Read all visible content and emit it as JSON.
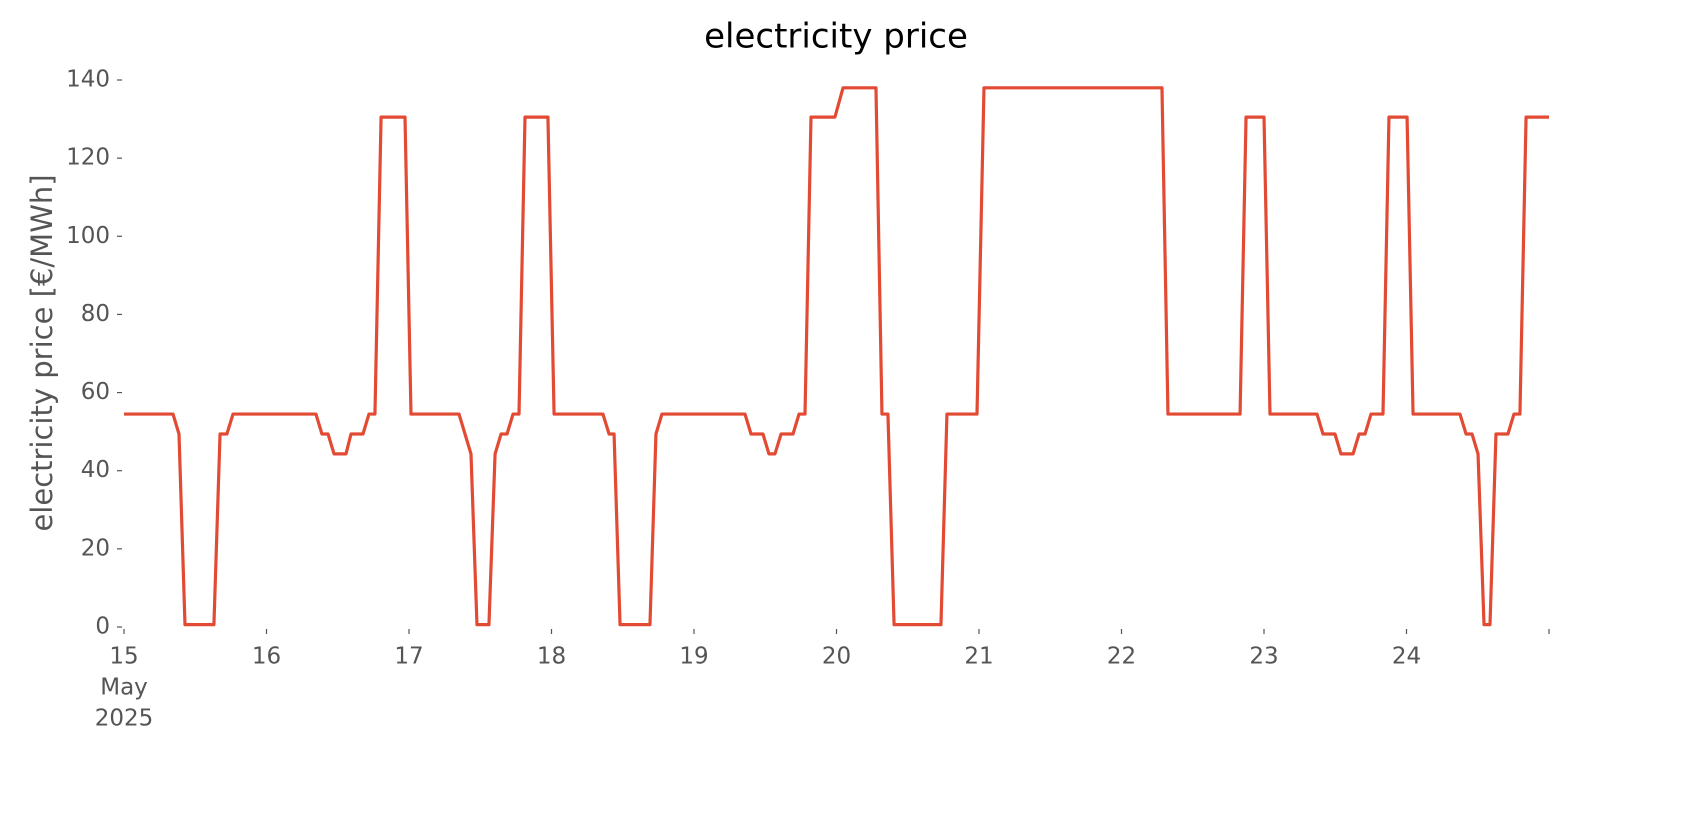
{
  "chart_data": {
    "type": "line",
    "title": "electricity price",
    "ylabel": "electricity price [€/MWh]",
    "x_offset_label": [
      "May",
      "2025"
    ],
    "xlim": [
      15,
      25
    ],
    "xticks": [
      15,
      16,
      17,
      18,
      19,
      20,
      21,
      22,
      23,
      24
    ],
    "ylim": [
      0,
      140
    ],
    "yticks": [
      0,
      20,
      40,
      60,
      80,
      100,
      120,
      140
    ],
    "grid": false,
    "series": [
      {
        "name": "electricity price",
        "color": "#e24a33",
        "x": [
          15,
          15.344,
          15.386,
          15.428,
          15.631,
          15.674,
          15.722,
          15.765,
          16.347,
          16.389,
          16.432,
          16.474,
          16.558,
          16.593,
          16.677,
          16.719,
          16.761,
          16.804,
          16.972,
          17.014,
          17.351,
          17.435,
          17.477,
          17.561,
          17.604,
          17.646,
          17.688,
          17.73,
          17.772,
          17.814,
          17.975,
          18.018,
          18.361,
          18.404,
          18.439,
          18.481,
          18.691,
          18.733,
          18.775,
          19.358,
          19.4,
          19.484,
          19.526,
          19.568,
          19.611,
          19.695,
          19.737,
          19.779,
          19.821,
          19.989,
          20.046,
          20.277,
          20.319,
          20.361,
          20.404,
          20.733,
          20.775,
          20.986,
          21.035,
          22.284,
          22.326,
          22.832,
          22.874,
          23.0,
          23.042,
          23.372,
          23.414,
          23.498,
          23.54,
          23.625,
          23.667,
          23.709,
          23.751,
          23.835,
          23.877,
          24.004,
          24.046,
          24.375,
          24.418,
          24.46,
          24.502,
          24.544,
          24.586,
          24.628,
          24.712,
          24.754,
          24.796,
          24.839,
          25.0
        ],
        "values": [
          54.5,
          54.5,
          49.4,
          0.6,
          0.6,
          49.4,
          49.4,
          54.5,
          54.5,
          49.4,
          49.4,
          44.3,
          44.3,
          49.4,
          49.4,
          54.5,
          54.5,
          130.5,
          130.5,
          54.5,
          54.5,
          44.3,
          0.6,
          0.6,
          44.3,
          49.4,
          49.4,
          54.5,
          54.5,
          130.5,
          130.5,
          54.5,
          54.5,
          49.4,
          49.4,
          0.6,
          0.6,
          49.4,
          54.5,
          54.5,
          49.4,
          49.4,
          44.3,
          44.3,
          49.4,
          49.4,
          54.5,
          54.5,
          130.5,
          130.5,
          138,
          138,
          54.5,
          54.5,
          0.6,
          0.6,
          54.5,
          54.5,
          138,
          138,
          54.5,
          54.5,
          130.5,
          130.5,
          54.5,
          54.5,
          49.4,
          49.4,
          44.3,
          44.3,
          49.4,
          49.4,
          54.5,
          54.5,
          130.5,
          130.5,
          54.5,
          54.5,
          49.4,
          49.4,
          44.3,
          0.6,
          0.6,
          49.4,
          49.4,
          54.5,
          54.5,
          130.5,
          130.5
        ]
      }
    ]
  }
}
